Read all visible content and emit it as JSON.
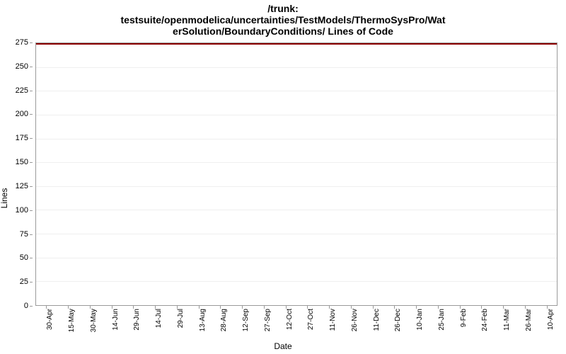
{
  "title": {
    "line1": "/trunk:",
    "line2": "testsuite/openmodelica/uncertainties/TestModels/ThermoSysPro/Wat",
    "line3": "erSolution/BoundaryConditions/ Lines of Code",
    "fontsize": 14,
    "color": "#000000"
  },
  "chart": {
    "type": "line",
    "background_color": "#ffffff",
    "border_color": "#9a9a9a",
    "grid_color": "#efefef",
    "y_axis": {
      "label": "Lines",
      "min": 0,
      "max": 275,
      "tick_step": 25,
      "ticks": [
        0,
        25,
        50,
        75,
        100,
        125,
        150,
        175,
        200,
        225,
        250,
        275
      ],
      "label_fontsize": 12,
      "tick_fontsize": 11
    },
    "x_axis": {
      "label": "Date",
      "labels": [
        "30-Apr",
        "15-May",
        "30-May",
        "14-Jun",
        "29-Jun",
        "14-Jul",
        "29-Jul",
        "13-Aug",
        "28-Aug",
        "12-Sep",
        "27-Sep",
        "12-Oct",
        "27-Oct",
        "11-Nov",
        "26-Nov",
        "11-Dec",
        "26-Dec",
        "10-Jan",
        "25-Jan",
        "9-Feb",
        "24-Feb",
        "11-Mar",
        "26-Mar",
        "10-Apr"
      ],
      "label_fontsize": 12,
      "tick_fontsize": 10,
      "rotation": -90
    },
    "series": {
      "name": "lines-of-code",
      "constant_value": 275,
      "color": "#8b0000",
      "line_width": 2
    }
  }
}
